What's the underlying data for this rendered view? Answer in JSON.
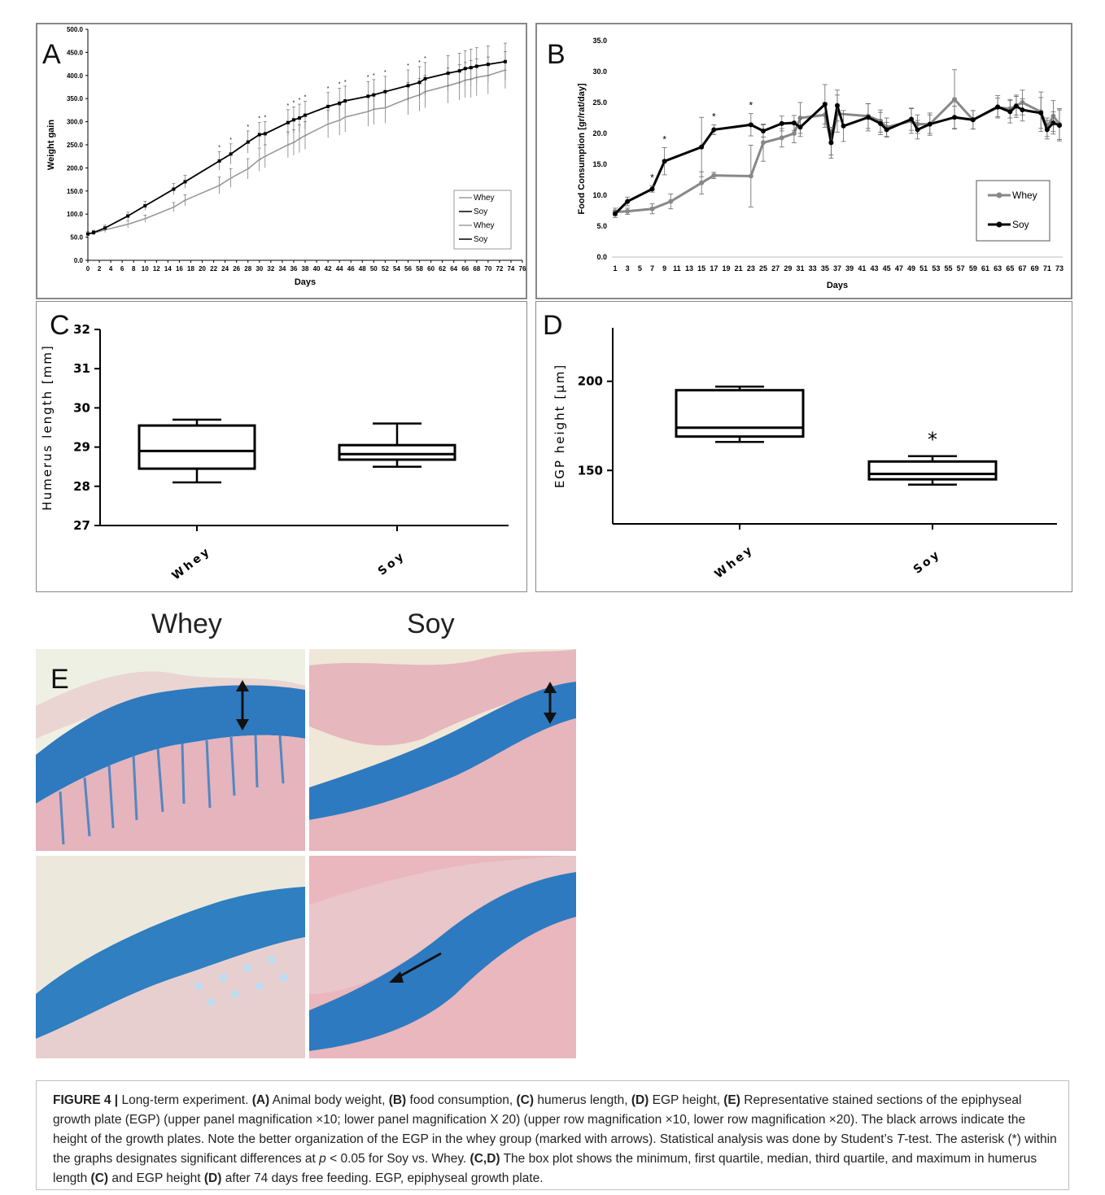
{
  "panels": {
    "A": {
      "letter": "A"
    },
    "B": {
      "letter": "B"
    },
    "C": {
      "letter": "C"
    },
    "D": {
      "letter": "D"
    },
    "E": {
      "letter": "E",
      "col_left": "Whey",
      "col_right": "Soy"
    }
  },
  "chart_data": [
    {
      "id": "A",
      "type": "line",
      "xlabel": "Days",
      "ylabel": "Weight gain",
      "xlim": [
        0,
        76
      ],
      "ylim": [
        0,
        500
      ],
      "xticks": [
        0,
        2,
        4,
        6,
        8,
        10,
        12,
        14,
        16,
        18,
        20,
        22,
        24,
        26,
        28,
        30,
        32,
        34,
        36,
        38,
        40,
        42,
        44,
        46,
        48,
        50,
        52,
        54,
        56,
        58,
        60,
        62,
        64,
        66,
        68,
        70,
        72,
        74,
        76
      ],
      "yticks": [
        "0.0",
        "50.0",
        "100.0",
        "150.0",
        "200.0",
        "250.0",
        "300.0",
        "350.0",
        "400.0",
        "450.0",
        "500.0"
      ],
      "legend": [
        "Whey",
        "Soy",
        "Whey",
        "Soy"
      ],
      "legend_position": "right",
      "series": [
        {
          "name": "Whey",
          "color": "#9a9a9a",
          "x": [
            0,
            1,
            3,
            7,
            10,
            15,
            17,
            23,
            25,
            28,
            30,
            31,
            35,
            36,
            37,
            38,
            42,
            44,
            45,
            49,
            50,
            52,
            56,
            58,
            59,
            63,
            65,
            66,
            67,
            68,
            70,
            73
          ],
          "y": [
            57,
            59,
            66,
            78,
            90,
            115,
            130,
            162,
            178,
            198,
            218,
            225,
            250,
            255,
            263,
            270,
            295,
            303,
            310,
            322,
            327,
            330,
            350,
            358,
            365,
            378,
            385,
            390,
            392,
            396,
            400,
            412
          ],
          "err": [
            5,
            5,
            6,
            8,
            8,
            10,
            12,
            18,
            20,
            22,
            25,
            25,
            28,
            28,
            30,
            30,
            30,
            32,
            32,
            32,
            33,
            33,
            35,
            35,
            35,
            38,
            38,
            38,
            40,
            40,
            40,
            40
          ]
        },
        {
          "name": "Soy",
          "color": "#000000",
          "x": [
            0,
            1,
            3,
            7,
            10,
            15,
            17,
            23,
            25,
            28,
            30,
            31,
            35,
            36,
            37,
            38,
            42,
            44,
            45,
            49,
            50,
            52,
            56,
            58,
            59,
            63,
            65,
            66,
            67,
            68,
            70,
            73
          ],
          "y": [
            57,
            60,
            70,
            96,
            118,
            154,
            170,
            215,
            230,
            256,
            272,
            274,
            298,
            304,
            308,
            314,
            333,
            340,
            345,
            355,
            358,
            365,
            378,
            385,
            393,
            405,
            410,
            415,
            417,
            420,
            424,
            430
          ],
          "err": [
            5,
            5,
            6,
            8,
            10,
            12,
            14,
            20,
            22,
            24,
            26,
            26,
            28,
            28,
            30,
            30,
            30,
            32,
            32,
            32,
            33,
            33,
            34,
            34,
            35,
            38,
            38,
            38,
            40,
            40,
            40,
            40
          ]
        }
      ],
      "significance_marker": "*"
    },
    {
      "id": "B",
      "type": "line",
      "xlabel": "Days",
      "ylabel": "Food Consumption [gr/rat/day]",
      "ylim": [
        0,
        35
      ],
      "yticks": [
        "0.0",
        "5.0",
        "10.0",
        "15.0",
        "20.0",
        "25.0",
        "30.0",
        "35.0"
      ],
      "xticks": [
        "1",
        "3",
        "5",
        "7",
        "9",
        "11",
        "13",
        "15",
        "17",
        "19",
        "21",
        "23",
        "25",
        "27",
        "29",
        "31",
        "33",
        "35",
        "37",
        "39",
        "41",
        "43",
        "45",
        "47",
        "49",
        "51",
        "53",
        "55",
        "57",
        "59",
        "61",
        "63",
        "65",
        "67",
        "69",
        "71",
        "73"
      ],
      "legend": [
        "Whey",
        "Soy"
      ],
      "legend_position": "bottom-right",
      "series": [
        {
          "name": "Whey",
          "color": "#888888",
          "x": [
            1,
            3,
            7,
            10,
            15,
            17,
            23,
            25,
            28,
            30,
            31,
            35,
            36,
            37,
            42,
            44,
            45,
            49,
            50,
            52,
            56,
            59,
            63,
            65,
            66,
            67,
            70,
            71,
            72,
            73
          ],
          "y": [
            7.3,
            7.4,
            7.8,
            9,
            12,
            13.2,
            13.1,
            18.5,
            19.3,
            20,
            22.5,
            23,
            18.5,
            23.2,
            22.8,
            22,
            21,
            22,
            21.5,
            21.5,
            25.5,
            22.2,
            24.2,
            24,
            24.5,
            25,
            23.5,
            21,
            22.8,
            21.5
          ],
          "err": [
            0.6,
            0.5,
            0.8,
            1.2,
            1.8,
            0.5,
            5,
            3,
            1.5,
            1.5,
            2.5,
            2,
            2,
            3,
            2,
            1.8,
            1.5,
            2,
            1.5,
            1.5,
            4.8,
            1.5,
            1.5,
            1.5,
            1.5,
            2,
            3.2,
            1.5,
            2.5,
            2.5
          ]
        },
        {
          "name": "Soy",
          "color": "#000000",
          "x": [
            1,
            3,
            7,
            9,
            15,
            17,
            23,
            25,
            28,
            30,
            31,
            35,
            36,
            37,
            38,
            42,
            44,
            45,
            49,
            50,
            52,
            56,
            59,
            63,
            65,
            66,
            67,
            70,
            71,
            72,
            73
          ],
          "y": [
            7,
            9,
            11,
            15.5,
            17.8,
            20.6,
            21.4,
            20.4,
            21.6,
            21.7,
            21,
            24.7,
            18.5,
            24.5,
            21.2,
            22.6,
            21.6,
            20.6,
            22.3,
            20.6,
            21.5,
            22.6,
            22.2,
            24.3,
            23.5,
            24.4,
            23.8,
            23.3,
            20.6,
            21.7,
            21.3
          ],
          "err": [
            0.6,
            0.7,
            0.5,
            2.2,
            4.8,
            0.8,
            1.8,
            1,
            1.2,
            1.2,
            1.5,
            3.2,
            2.5,
            2.5,
            2.5,
            2.2,
            1.8,
            1.2,
            1.8,
            1.5,
            1.8,
            1.8,
            1.5,
            1.8,
            1.8,
            1.8,
            1.8,
            2.5,
            1.5,
            1.8,
            2.5
          ]
        }
      ],
      "significance_marker": "*",
      "significance_days": [
        7,
        9,
        17,
        23
      ]
    },
    {
      "id": "C",
      "type": "box",
      "ylabel": "Humerus length [mm]",
      "ylim": [
        27,
        32
      ],
      "yticks": [
        "27",
        "28",
        "29",
        "30",
        "31",
        "32"
      ],
      "categories": [
        "Whey",
        "Soy"
      ],
      "boxes": [
        {
          "min": 28.1,
          "q1": 28.45,
          "median": 28.9,
          "q3": 29.55,
          "max": 29.7
        },
        {
          "min": 28.5,
          "q1": 28.68,
          "median": 28.82,
          "q3": 29.05,
          "max": 29.6
        }
      ]
    },
    {
      "id": "D",
      "type": "box",
      "ylabel": "EGP height [μm]",
      "ylim": [
        120,
        230
      ],
      "yticks": [
        "150",
        "200"
      ],
      "categories": [
        "Whey",
        "Soy"
      ],
      "boxes": [
        {
          "min": 166,
          "q1": 169,
          "median": 174,
          "q3": 195,
          "max": 197
        },
        {
          "min": 142,
          "q1": 145,
          "median": 148,
          "q3": 155,
          "max": 158
        }
      ],
      "significance_marker": "*"
    }
  ],
  "caption": {
    "fig_label": "FIGURE 4 |",
    "t1": " Long-term experiment. ",
    "bA": "(A)",
    "t2": " Animal body weight, ",
    "bB": "(B)",
    "t3": " food consumption, ",
    "bC": "(C)",
    "t4": " humerus length, ",
    "bD": "(D)",
    "t5": " EGP height, ",
    "bE": "(E)",
    "t6": " Representative stained sections of the epiphyseal growth plate (EGP) (upper panel magnification ×10; lower panel magnification X 20) (upper row magnification ×10, lower row magnification ×20). The black arrows indicate the height of the growth plates. Note the better organization of the EGP in the whey group (marked with arrows). Statistical analysis was done by Student’s ",
    "t_italic": "T",
    "t7": "-test. The asterisk (*) within the graphs designates significant differences at ",
    "p_italic": "p",
    "t8": " < 0.05 for Soy vs. Whey. ",
    "bCD": "(C,D)",
    "t9": " The box plot shows the minimum, first quartile, median, third quartile, and maximum in humerus length ",
    "bC2": "(C)",
    "t10": " and EGP height ",
    "bD2": "(D)",
    "t11": " after 74 days free feeding. EGP, epiphyseal growth plate."
  },
  "colors": {
    "whey_A": "#9aa56b",
    "stain_blue": "#2f7fc1",
    "stain_pink": "#e2a3ad",
    "background": "#f0ead8"
  }
}
